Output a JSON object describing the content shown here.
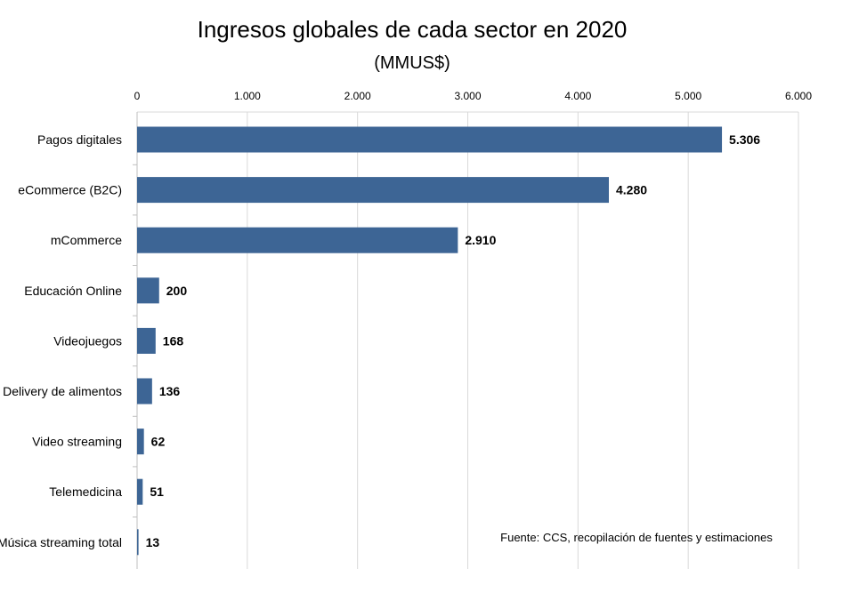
{
  "chart_data": {
    "type": "bar",
    "orientation": "horizontal",
    "title": "Ingresos globales de cada sector en 2020",
    "subtitle": "(MMUS$)",
    "categories": [
      "Pagos digitales",
      "eCommerce (B2C)",
      "mCommerce",
      "Educación Online",
      "Videojuegos",
      "Delivery de alimentos",
      "Video streaming",
      "Telemedicina",
      "Música streaming total"
    ],
    "values": [
      5306,
      4280,
      2910,
      200,
      168,
      136,
      62,
      51,
      13
    ],
    "data_labels": [
      "5.306",
      "4.280",
      "2.910",
      "200",
      "168",
      "136",
      "62",
      "51",
      "13"
    ],
    "xlim": [
      0,
      6000
    ],
    "x_ticks": [
      0,
      1000,
      2000,
      3000,
      4000,
      5000,
      6000
    ],
    "x_tick_labels": [
      "0",
      "1.000",
      "2.000",
      "3.000",
      "4.000",
      "5.000",
      "6.000"
    ],
    "x_axis_position": "top",
    "grid": true,
    "legend": "none",
    "bar_color": "#3d6595",
    "annotation": "Fuente: CCS, recopilación de fuentes y estimaciones"
  }
}
